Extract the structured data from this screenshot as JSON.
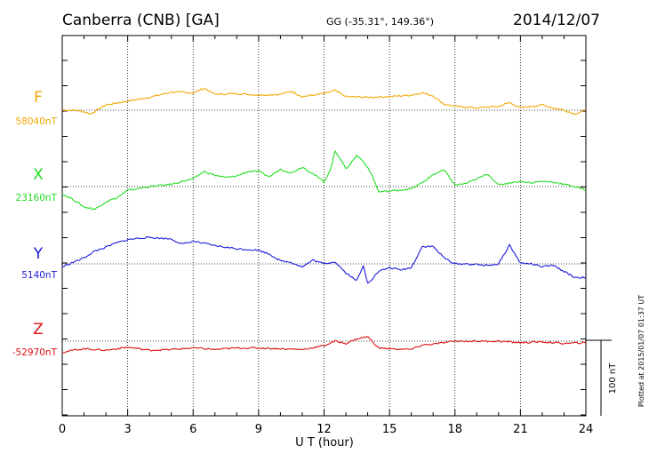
{
  "chart_data": {
    "type": "line",
    "station": "Canberra (CNB)  [GA]",
    "coords": "GG (-35.31°, 149.36°)",
    "date": "2014/12/07",
    "xlabel": "U T (hour)",
    "xlim": [
      0,
      24
    ],
    "xticks": [
      "0",
      "3",
      "6",
      "9",
      "12",
      "15",
      "18",
      "21",
      "24"
    ],
    "scale_label": "100 nT",
    "plotted_note": "Plotted at 2015/01/07 01:37 UT",
    "series": [
      {
        "name": "F",
        "baseline_label": "58040nT",
        "color": "#f0a800",
        "baseline_nT": 58040,
        "x": [
          0,
          0.5,
          1,
          1.3,
          2,
          3,
          4,
          5,
          6,
          6.5,
          7,
          8,
          9,
          10,
          10.5,
          11,
          12,
          12.5,
          13,
          14,
          15,
          16,
          16.5,
          17,
          17.5,
          18,
          19,
          20,
          20.5,
          21,
          22,
          22.5,
          23,
          23.5,
          24
        ],
        "values": [
          58040,
          58040,
          58038,
          58035,
          58047,
          58052,
          58057,
          58064,
          58063,
          58069,
          58061,
          58062,
          58060,
          58061,
          58065,
          58058,
          58062,
          58066,
          58058,
          58057,
          58058,
          58060,
          58063,
          58059,
          58048,
          58045,
          58043,
          58045,
          58050,
          58043,
          58047,
          58043,
          58040,
          58035,
          58040
        ]
      },
      {
        "name": "X",
        "baseline_label": "23160nT",
        "color": "#22dd22",
        "baseline_nT": 23160,
        "x": [
          0,
          0.5,
          1,
          1.5,
          2,
          2.5,
          3,
          4,
          5,
          5.5,
          6,
          6.5,
          7,
          7.5,
          8,
          8.5,
          9,
          9.5,
          10,
          10.5,
          11,
          11.5,
          12,
          12.3,
          12.5,
          12.8,
          13,
          13.5,
          13.8,
          14.2,
          14.5,
          15,
          16,
          16.5,
          17,
          17.5,
          18,
          18.5,
          19,
          19.5,
          20,
          20.5,
          21,
          21.5,
          22,
          22.5,
          23,
          23.5,
          24
        ],
        "values": [
          23150,
          23143,
          23133,
          23130,
          23140,
          23145,
          23155,
          23160,
          23163,
          23167,
          23170,
          23180,
          23175,
          23172,
          23174,
          23180,
          23180,
          23173,
          23183,
          23178,
          23186,
          23177,
          23166,
          23183,
          23207,
          23195,
          23183,
          23201,
          23194,
          23175,
          23153,
          23154,
          23157,
          23165,
          23176,
          23182,
          23162,
          23164,
          23170,
          23177,
          23162,
          23165,
          23167,
          23165,
          23167,
          23166,
          23163,
          23160,
          23155
        ]
      },
      {
        "name": "Y",
        "baseline_label": "5140nT",
        "color": "#1a1adc",
        "baseline_nT": 5140,
        "x": [
          0,
          0.5,
          1,
          1.5,
          2,
          2.5,
          3,
          3.5,
          4,
          5,
          5.5,
          6,
          7,
          8,
          9,
          9.5,
          10,
          10.5,
          11,
          11.5,
          12,
          12.5,
          13,
          13.5,
          13.8,
          14,
          14.2,
          14.5,
          15,
          15.5,
          16,
          16.5,
          17,
          17.5,
          18,
          18.5,
          19,
          19.5,
          20,
          20.5,
          21,
          21.5,
          22,
          22.5,
          23,
          23.5,
          24
        ],
        "values": [
          5136,
          5142,
          5148,
          5157,
          5162,
          5168,
          5172,
          5174,
          5175,
          5173,
          5166,
          5170,
          5164,
          5160,
          5158,
          5153,
          5144,
          5142,
          5136,
          5145,
          5140,
          5143,
          5128,
          5118,
          5137,
          5115,
          5120,
          5130,
          5135,
          5132,
          5135,
          5163,
          5163,
          5148,
          5140,
          5140,
          5139,
          5138,
          5140,
          5165,
          5141,
          5140,
          5136,
          5138,
          5130,
          5122,
          5122
        ]
      },
      {
        "name": "Z",
        "baseline_label": "-52970nT",
        "color": "#dd1111",
        "baseline_nT": -52970,
        "x": [
          0,
          0.5,
          1,
          2,
          3,
          4,
          5,
          6,
          7,
          8,
          9,
          10,
          11,
          12,
          12.5,
          13,
          13.5,
          14,
          14.5,
          15,
          16,
          16.5,
          17,
          18,
          19,
          20,
          21,
          22,
          23,
          24
        ],
        "values": [
          -52985,
          -52982,
          -52980,
          -52982,
          -52978,
          -52982,
          -52981,
          -52979,
          -52981,
          -52979,
          -52979,
          -52980,
          -52981,
          -52976,
          -52970,
          -52973,
          -52967,
          -52964,
          -52979,
          -52980,
          -52981,
          -52975,
          -52974,
          -52970,
          -52970,
          -52970,
          -52972,
          -52971,
          -52973,
          -52972
        ]
      }
    ]
  }
}
